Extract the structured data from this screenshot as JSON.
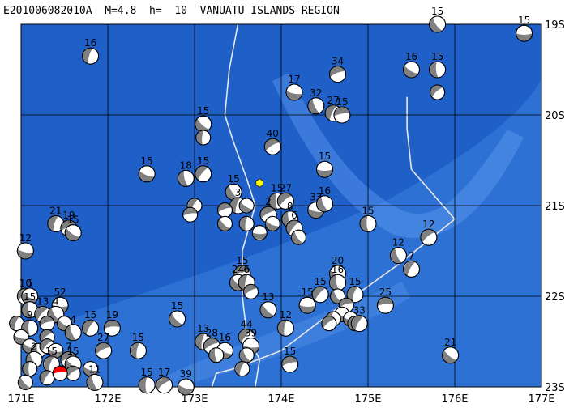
{
  "title": "E201006082010A  M=4.8  h=  10  VANUATU ISLANDS REGION",
  "colors": {
    "ocean_deep": "#1f5fc8",
    "ocean_shallow": "#3a7fe0",
    "ocean_bright": "#5d9bf0",
    "grid": "#000000",
    "plate_boundary": "#e8e8e8",
    "beachball_fill": "#808080",
    "beachball_white": "#ffffff",
    "highlight_event": "#ff0000",
    "epicenter_marker": "#ffff00"
  },
  "map": {
    "lon_min": 171,
    "lon_max": 177,
    "lat_min": -23,
    "lat_max": -19,
    "lon_labels": [
      "171E",
      "172E",
      "173E",
      "174E",
      "175E",
      "176E",
      "177E"
    ],
    "lat_labels": [
      "19S",
      "20S",
      "21S",
      "22S",
      "23S"
    ]
  },
  "epicenter": {
    "lon": 173.75,
    "lat": -20.75
  },
  "plate_boundaries": [
    [
      [
        173.5,
        -19
      ],
      [
        173.4,
        -19.5
      ],
      [
        173.35,
        -20
      ],
      [
        173.45,
        -20.3
      ],
      [
        173.6,
        -20.7
      ],
      [
        173.7,
        -21
      ],
      [
        173.55,
        -21.5
      ],
      [
        173.55,
        -22
      ],
      [
        173.6,
        -22.4
      ],
      [
        173.75,
        -22.7
      ],
      [
        173.7,
        -23
      ]
    ],
    [
      [
        175.45,
        -19.8
      ],
      [
        175.45,
        -20.15
      ],
      [
        175.5,
        -20.6
      ],
      [
        176.0,
        -21.15
      ],
      [
        175.35,
        -21.65
      ],
      [
        174.55,
        -22.2
      ],
      [
        174.0,
        -22.6
      ],
      [
        173.45,
        -22.8
      ],
      [
        173.25,
        -22.85
      ],
      [
        173.2,
        -23
      ]
    ]
  ],
  "events": [
    {
      "lon": 176.8,
      "lat": -19.1,
      "label": "15"
    },
    {
      "lon": 175.8,
      "lat": -19.0,
      "label": "15"
    },
    {
      "lon": 171.8,
      "lat": -19.35,
      "label": "16"
    },
    {
      "lon": 174.65,
      "lat": -19.55,
      "label": "34"
    },
    {
      "lon": 175.5,
      "lat": -19.5,
      "label": "16"
    },
    {
      "lon": 175.8,
      "lat": -19.5,
      "label": "15"
    },
    {
      "lon": 175.8,
      "lat": -19.75,
      "label": ""
    },
    {
      "lon": 174.15,
      "lat": -19.75,
      "label": "17"
    },
    {
      "lon": 174.4,
      "lat": -19.9,
      "label": "32"
    },
    {
      "lon": 174.6,
      "lat": -19.98,
      "label": "27"
    },
    {
      "lon": 174.7,
      "lat": -20.0,
      "label": "15"
    },
    {
      "lon": 173.1,
      "lat": -20.1,
      "label": "15"
    },
    {
      "lon": 173.1,
      "lat": -20.25,
      "label": ""
    },
    {
      "lon": 173.9,
      "lat": -20.35,
      "label": "40"
    },
    {
      "lon": 172.45,
      "lat": -20.65,
      "label": "15"
    },
    {
      "lon": 172.9,
      "lat": -20.7,
      "label": "18"
    },
    {
      "lon": 173.1,
      "lat": -20.65,
      "label": "15"
    },
    {
      "lon": 174.5,
      "lat": -20.6,
      "label": "15"
    },
    {
      "lon": 173.45,
      "lat": -20.85,
      "label": "15"
    },
    {
      "lon": 173.5,
      "lat": -21.0,
      "label": "3"
    },
    {
      "lon": 173.35,
      "lat": -21.05,
      "label": ""
    },
    {
      "lon": 173.6,
      "lat": -21.0,
      "label": ""
    },
    {
      "lon": 173.95,
      "lat": -20.95,
      "label": "15"
    },
    {
      "lon": 174.05,
      "lat": -20.95,
      "label": "27"
    },
    {
      "lon": 174.4,
      "lat": -21.05,
      "label": "33"
    },
    {
      "lon": 174.5,
      "lat": -20.98,
      "label": "16"
    },
    {
      "lon": 173.0,
      "lat": -21.0,
      "label": ""
    },
    {
      "lon": 172.95,
      "lat": -21.1,
      "label": ""
    },
    {
      "lon": 173.35,
      "lat": -21.2,
      "label": ""
    },
    {
      "lon": 173.6,
      "lat": -21.2,
      "label": ""
    },
    {
      "lon": 173.85,
      "lat": -21.1,
      "label": "2"
    },
    {
      "lon": 173.9,
      "lat": -21.2,
      "label": ""
    },
    {
      "lon": 174.1,
      "lat": -21.15,
      "label": "8"
    },
    {
      "lon": 174.15,
      "lat": -21.25,
      "label": "6"
    },
    {
      "lon": 173.75,
      "lat": -21.3,
      "label": ""
    },
    {
      "lon": 174.2,
      "lat": -21.35,
      "label": ""
    },
    {
      "lon": 171.4,
      "lat": -21.2,
      "label": "21"
    },
    {
      "lon": 171.55,
      "lat": -21.25,
      "label": "19"
    },
    {
      "lon": 171.6,
      "lat": -21.3,
      "label": "15"
    },
    {
      "lon": 175.0,
      "lat": -21.2,
      "label": "15"
    },
    {
      "lon": 175.7,
      "lat": -21.35,
      "label": "12"
    },
    {
      "lon": 171.05,
      "lat": -21.5,
      "label": "12"
    },
    {
      "lon": 175.35,
      "lat": -21.55,
      "label": "12"
    },
    {
      "lon": 175.5,
      "lat": -21.7,
      "label": "7"
    },
    {
      "lon": 173.55,
      "lat": -21.75,
      "label": "15"
    },
    {
      "lon": 173.5,
      "lat": -21.85,
      "label": "24"
    },
    {
      "lon": 173.6,
      "lat": -21.85,
      "label": "6"
    },
    {
      "lon": 173.65,
      "lat": -21.95,
      "label": ""
    },
    {
      "lon": 174.65,
      "lat": -21.75,
      "label": "20"
    },
    {
      "lon": 174.65,
      "lat": -21.85,
      "label": "16"
    },
    {
      "lon": 174.45,
      "lat": -21.98,
      "label": "15"
    },
    {
      "lon": 174.3,
      "lat": -22.1,
      "label": "15"
    },
    {
      "lon": 174.65,
      "lat": -22.0,
      "label": ""
    },
    {
      "lon": 174.85,
      "lat": -21.98,
      "label": "15"
    },
    {
      "lon": 174.75,
      "lat": -22.1,
      "label": ""
    },
    {
      "lon": 174.7,
      "lat": -22.2,
      "label": ""
    },
    {
      "lon": 174.6,
      "lat": -22.25,
      "label": ""
    },
    {
      "lon": 174.55,
      "lat": -22.3,
      "label": ""
    },
    {
      "lon": 174.8,
      "lat": -22.25,
      "label": ""
    },
    {
      "lon": 174.85,
      "lat": -22.3,
      "label": ""
    },
    {
      "lon": 174.9,
      "lat": -22.3,
      "label": "33"
    },
    {
      "lon": 175.2,
      "lat": -22.1,
      "label": "25"
    },
    {
      "lon": 173.85,
      "lat": -22.15,
      "label": "13"
    },
    {
      "lon": 174.05,
      "lat": -22.35,
      "label": "12"
    },
    {
      "lon": 171.05,
      "lat": -22.0,
      "label": "10"
    },
    {
      "lon": 171.1,
      "lat": -22.0,
      "label": "5"
    },
    {
      "lon": 171.1,
      "lat": -22.15,
      "label": "15"
    },
    {
      "lon": 171.25,
      "lat": -22.2,
      "label": "13"
    },
    {
      "lon": 171.45,
      "lat": -22.1,
      "label": "52"
    },
    {
      "lon": 171.4,
      "lat": -22.2,
      "label": "4"
    },
    {
      "lon": 170.95,
      "lat": -22.3,
      "label": ""
    },
    {
      "lon": 171.3,
      "lat": -22.3,
      "label": ""
    },
    {
      "lon": 171.5,
      "lat": -22.3,
      "label": ""
    },
    {
      "lon": 171.1,
      "lat": -22.35,
      "label": "9"
    },
    {
      "lon": 171.3,
      "lat": -22.45,
      "label": ""
    },
    {
      "lon": 171.0,
      "lat": -22.45,
      "label": ""
    },
    {
      "lon": 171.6,
      "lat": -22.4,
      "label": "4"
    },
    {
      "lon": 171.8,
      "lat": -22.35,
      "label": "15"
    },
    {
      "lon": 172.05,
      "lat": -22.35,
      "label": "19"
    },
    {
      "lon": 172.8,
      "lat": -22.25,
      "label": "15"
    },
    {
      "lon": 172.35,
      "lat": -22.6,
      "label": "15"
    },
    {
      "lon": 171.95,
      "lat": -22.6,
      "label": "27"
    },
    {
      "lon": 171.1,
      "lat": -22.55,
      "label": ""
    },
    {
      "lon": 171.2,
      "lat": -22.6,
      "label": ""
    },
    {
      "lon": 171.3,
      "lat": -22.55,
      "label": ""
    },
    {
      "lon": 171.4,
      "lat": -22.6,
      "label": ""
    },
    {
      "lon": 171.15,
      "lat": -22.7,
      "label": "2"
    },
    {
      "lon": 171.35,
      "lat": -22.75,
      "label": "15"
    },
    {
      "lon": 171.55,
      "lat": -22.7,
      "label": "7"
    },
    {
      "lon": 171.6,
      "lat": -22.75,
      "label": "15"
    },
    {
      "lon": 171.1,
      "lat": -22.8,
      "label": ""
    },
    {
      "lon": 171.6,
      "lat": -22.85,
      "label": ""
    },
    {
      "lon": 171.8,
      "lat": -22.8,
      "label": ""
    },
    {
      "lon": 171.85,
      "lat": -22.95,
      "label": "11"
    },
    {
      "lon": 171.3,
      "lat": -22.9,
      "label": ""
    },
    {
      "lon": 171.45,
      "lat": -22.85,
      "label": "",
      "highlight": true
    },
    {
      "lon": 171.05,
      "lat": -22.95,
      "label": ""
    },
    {
      "lon": 173.1,
      "lat": -22.5,
      "label": "13"
    },
    {
      "lon": 173.2,
      "lat": -22.55,
      "label": "28"
    },
    {
      "lon": 173.35,
      "lat": -22.6,
      "label": "16"
    },
    {
      "lon": 173.25,
      "lat": -22.65,
      "label": ""
    },
    {
      "lon": 173.6,
      "lat": -22.45,
      "label": "44"
    },
    {
      "lon": 173.65,
      "lat": -22.55,
      "label": "39"
    },
    {
      "lon": 173.6,
      "lat": -22.65,
      "label": ""
    },
    {
      "lon": 173.55,
      "lat": -22.8,
      "label": ""
    },
    {
      "lon": 174.1,
      "lat": -22.75,
      "label": "15"
    },
    {
      "lon": 175.95,
      "lat": -22.65,
      "label": "21"
    },
    {
      "lon": 172.45,
      "lat": -22.98,
      "label": "15"
    },
    {
      "lon": 172.65,
      "lat": -22.98,
      "label": "17"
    },
    {
      "lon": 172.9,
      "lat": -23.0,
      "label": "39"
    }
  ]
}
